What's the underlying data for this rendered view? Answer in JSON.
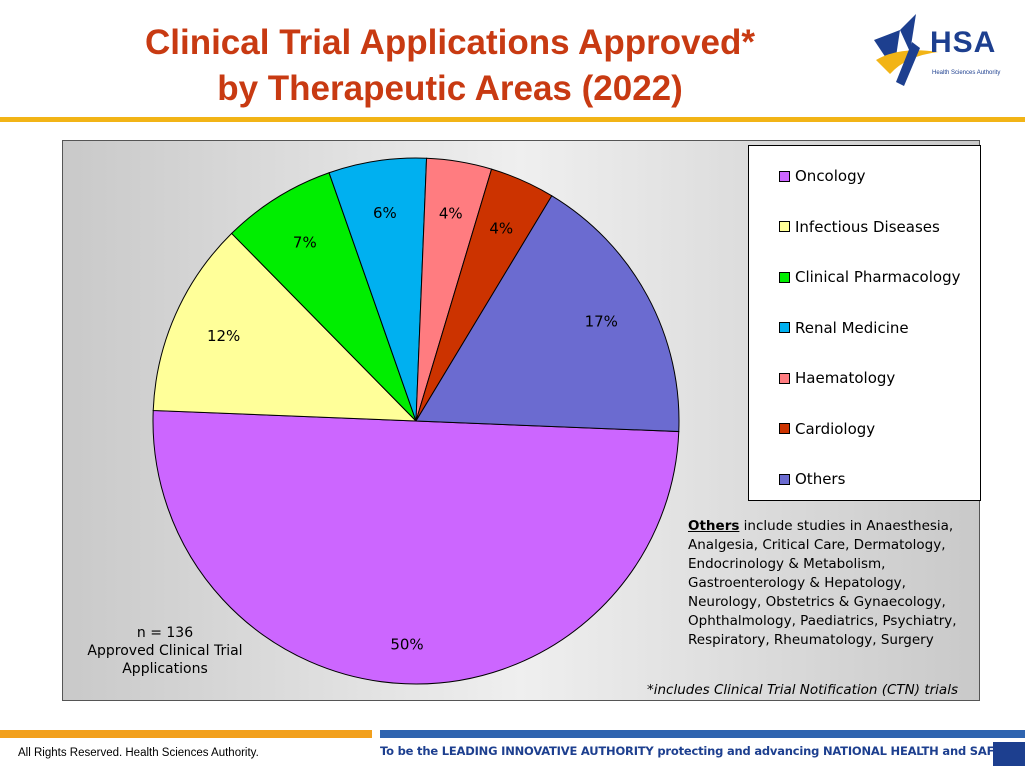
{
  "slide": {
    "title_line1": "Clinical Trial Applications Approved*",
    "title_line2": "by Therapeutic Areas (2022)",
    "logo_text": "HSA",
    "logo_subtext": "Health Sciences Authority",
    "footer_left": "All Rights Reserved. Health Sciences Authority.",
    "footer_right": "To be the LEADING INNOVATIVE AUTHORITY protecting and advancing NATIONAL HEALTH and SAFETY"
  },
  "colors": {
    "title": "#c83a12",
    "rule_gold": "#f2b416",
    "footer_orange": "#f2a01d",
    "footer_blue": "#2e64b0",
    "brand_navy": "#1d3f8f"
  },
  "chart_data": {
    "type": "pie",
    "title": "Clinical Trial Applications Approved* by Therapeutic Areas (2022)",
    "slices": [
      {
        "label": "Oncology",
        "value": 50,
        "value_label": "50%",
        "color": "#cc66ff"
      },
      {
        "label": "Infectious Diseases",
        "value": 12,
        "value_label": "12%",
        "color": "#ffff99"
      },
      {
        "label": "Clinical Pharmacology",
        "value": 7,
        "value_label": "7%",
        "color": "#00ee00"
      },
      {
        "label": "Renal Medicine",
        "value": 6,
        "value_label": "6%",
        "color": "#00b0f0"
      },
      {
        "label": "Haematology",
        "value": 4,
        "value_label": "4%",
        "color": "#ff7c80"
      },
      {
        "label": "Cardiology",
        "value": 4,
        "value_label": "4%",
        "color": "#cc3300"
      },
      {
        "label": "Others",
        "value": 17,
        "value_label": "17%",
        "color": "#6b6bd0"
      }
    ],
    "legend_position": "right",
    "notes": {
      "n_line1": "n = 136",
      "n_line2": "Approved Clinical Trial",
      "n_line3": "Applications",
      "others_heading": "Others",
      "others_text": " include studies in Anaesthesia, Analgesia, Critical Care, Dermatology, Endocrinology & Metabolism, Gastroenterology & Hepatology, Neurology, Obstetrics & Gynaecology, Ophthalmology, Paediatrics, Psychiatry, Respiratory, Rheumatology, Surgery",
      "ctn": "*includes Clinical Trial Notification (CTN) trials"
    }
  }
}
